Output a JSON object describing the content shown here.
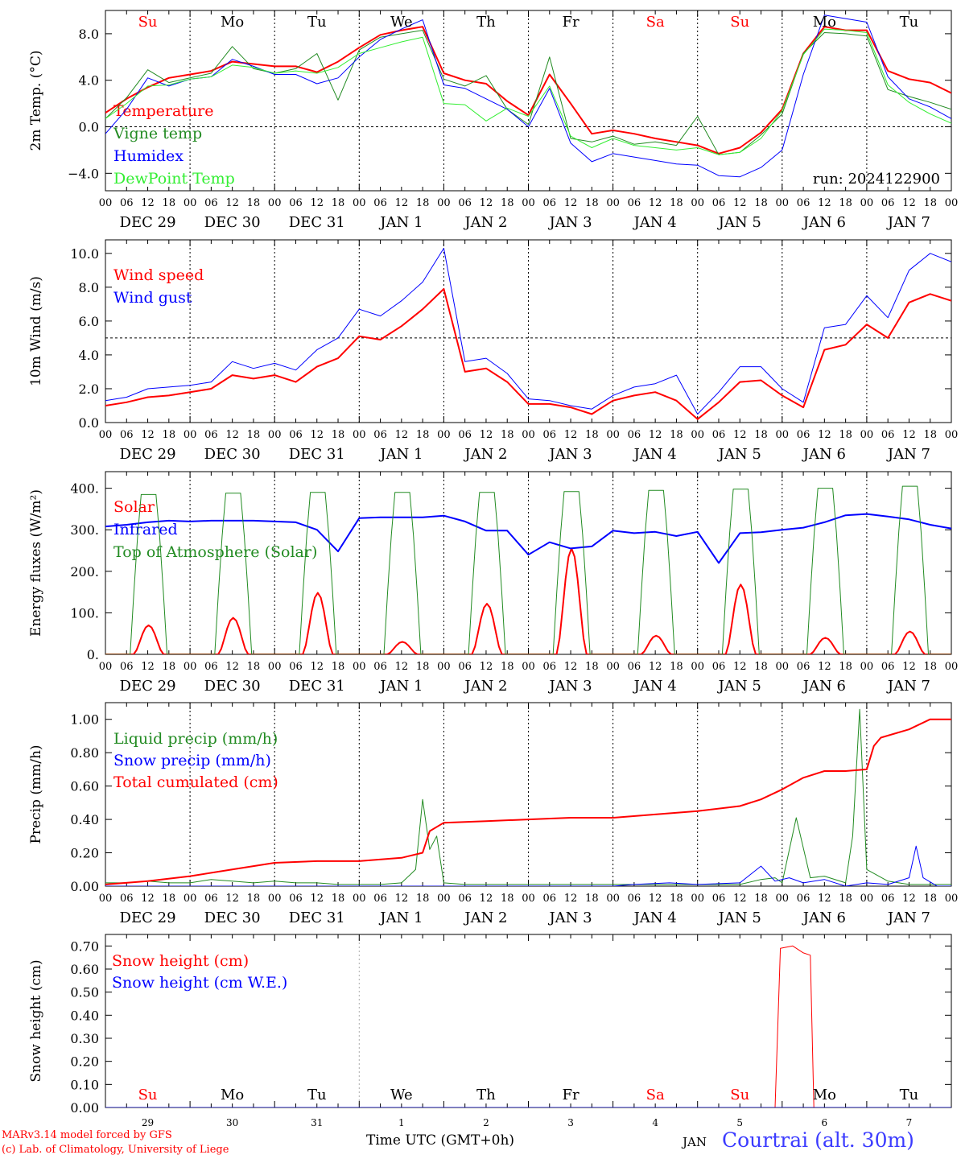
{
  "days": {
    "weekday_upper": [
      "Su",
      "Mo",
      "Tu",
      "We",
      "Th",
      "Fr",
      "Sa",
      "Su",
      "Mo",
      "Tu"
    ],
    "weekday_bottom": [
      "Su",
      "Mo",
      "Tu",
      "We",
      "Th",
      "Fr",
      "Sa",
      "Su",
      "Mo",
      "Tu"
    ],
    "weekend_color": "#ff0000",
    "weekday_color": "#000000",
    "weekend_flags": [
      true,
      false,
      false,
      false,
      false,
      false,
      true,
      true,
      false,
      false
    ],
    "date_labels": [
      "DEC 29",
      "DEC 30",
      "DEC 31",
      "JAN  1",
      "JAN  2",
      "JAN  3",
      "JAN  4",
      "JAN  5",
      "JAN  6",
      "JAN  7"
    ],
    "hour_ticks": [
      "00",
      "06",
      "12",
      "18"
    ],
    "hour_end": "00",
    "day_numbers": [
      "29",
      "30",
      "31",
      "1",
      "2",
      "3",
      "4",
      "5",
      "6",
      "7"
    ]
  },
  "run_label": "run: 2024122900",
  "footer": {
    "credit_line1": "MARv3.14 model forced by GFS",
    "credit_line2": "(c) Lab. of Climatology, University of Liege",
    "x_title": "Time UTC (GMT+0h)",
    "month": "JAN",
    "station": "Courtrai (alt. 30m)"
  },
  "chart_data": [
    {
      "type": "line",
      "ylabel": "2m Temp. (°C)",
      "ylim": [
        -5.5,
        10
      ],
      "ticks": [
        -4.0,
        0.0,
        4.0,
        8.0
      ],
      "tick_labels": [
        "−4.0",
        "0.0",
        "4.0",
        "8.0"
      ],
      "ref_line": 0,
      "x_unit": "hours since DEC 29 00 UTC",
      "x_range": [
        0,
        240
      ],
      "legend_placement": "left",
      "series": [
        {
          "name": "Temperature",
          "color": "#ff0000",
          "width": 2,
          "x": [
            0,
            6,
            12,
            18,
            24,
            30,
            36,
            42,
            48,
            54,
            60,
            66,
            72,
            78,
            84,
            90,
            96,
            102,
            108,
            114,
            120,
            126,
            132,
            138,
            144,
            150,
            156,
            162,
            168,
            174,
            180,
            186,
            192,
            198,
            204,
            210,
            216,
            222,
            228,
            234,
            240
          ],
          "y": [
            1.2,
            2.4,
            3.4,
            4.2,
            4.5,
            4.8,
            5.6,
            5.4,
            5.2,
            5.2,
            4.7,
            5.6,
            6.8,
            7.9,
            8.3,
            8.6,
            4.6,
            4.0,
            3.7,
            2.2,
            1.0,
            4.5,
            2.0,
            -0.6,
            -0.3,
            -0.6,
            -1.0,
            -1.3,
            -1.6,
            -2.3,
            -1.8,
            -0.5,
            1.5,
            6.3,
            8.6,
            8.3,
            8.3,
            4.8,
            4.1,
            3.8,
            2.9
          ]
        },
        {
          "name": "Vigne temp",
          "color": "#228b22",
          "width": 1,
          "x": [
            0,
            6,
            12,
            18,
            24,
            30,
            36,
            42,
            48,
            54,
            60,
            66,
            72,
            78,
            84,
            90,
            96,
            102,
            108,
            114,
            120,
            126,
            132,
            138,
            144,
            150,
            156,
            162,
            168,
            174,
            180,
            186,
            192,
            198,
            204,
            210,
            216,
            222,
            228,
            234,
            240
          ],
          "y": [
            0.7,
            2.5,
            4.9,
            3.8,
            4.2,
            4.6,
            6.9,
            5.0,
            4.6,
            5.0,
            6.3,
            2.3,
            6.6,
            7.7,
            8.0,
            8.3,
            4.1,
            3.5,
            4.4,
            1.5,
            0.2,
            6.0,
            -1.0,
            -1.3,
            -0.8,
            -1.5,
            -1.3,
            -1.6,
            0.9,
            -2.4,
            -2.2,
            -0.7,
            1.1,
            6.3,
            8.1,
            8.0,
            7.8,
            3.2,
            2.6,
            2.1,
            1.5
          ]
        },
        {
          "name": "Humidex",
          "color": "#0000ff",
          "width": 1,
          "x": [
            0,
            6,
            12,
            18,
            24,
            30,
            36,
            42,
            48,
            54,
            60,
            66,
            72,
            78,
            84,
            90,
            96,
            102,
            108,
            114,
            120,
            126,
            132,
            138,
            144,
            150,
            156,
            162,
            168,
            174,
            180,
            186,
            192,
            198,
            204,
            210,
            216,
            222,
            228,
            234,
            240
          ],
          "y": [
            -0.6,
            1.5,
            4.2,
            3.5,
            4.1,
            4.3,
            5.8,
            5.2,
            4.5,
            4.5,
            3.7,
            4.2,
            6.0,
            7.5,
            8.4,
            9.2,
            3.6,
            3.3,
            2.4,
            1.5,
            0.0,
            3.3,
            -1.4,
            -3.0,
            -2.3,
            -2.6,
            -2.9,
            -3.2,
            -3.3,
            -4.2,
            -4.3,
            -3.5,
            -2.0,
            4.5,
            9.6,
            9.3,
            9.0,
            4.3,
            2.4,
            1.7,
            0.7
          ]
        },
        {
          "name": "DewPoint Temp",
          "color": "#33ee33",
          "width": 1,
          "x": [
            0,
            6,
            12,
            18,
            24,
            30,
            36,
            42,
            48,
            54,
            60,
            66,
            72,
            78,
            84,
            90,
            96,
            102,
            108,
            114,
            120,
            126,
            132,
            138,
            144,
            150,
            156,
            162,
            168,
            174,
            180,
            186,
            192,
            198,
            204,
            210,
            216,
            222,
            228,
            234,
            240
          ],
          "y": [
            0.7,
            2.0,
            3.5,
            3.6,
            4.1,
            4.3,
            5.3,
            5.1,
            4.6,
            4.8,
            4.6,
            5.1,
            6.3,
            6.8,
            7.3,
            7.7,
            2.0,
            1.9,
            0.5,
            1.6,
            0.9,
            3.5,
            -0.8,
            -1.8,
            -1.0,
            -1.6,
            -1.8,
            -2.0,
            -1.8,
            -2.4,
            -2.2,
            -1.0,
            1.4,
            6.2,
            8.4,
            8.3,
            8.1,
            3.6,
            2.1,
            1.1,
            0.3
          ]
        }
      ]
    },
    {
      "type": "line",
      "ylabel": "10m Wind (m/s)",
      "ylim": [
        0,
        10.8
      ],
      "ticks": [
        0.0,
        2.0,
        4.0,
        6.0,
        8.0,
        10.0
      ],
      "tick_labels": [
        "0.0",
        "2.0",
        "4.0",
        "6.0",
        "8.0",
        "10.0"
      ],
      "ref_line": 5,
      "x_unit": "hours since DEC 29 00 UTC",
      "x_range": [
        0,
        240
      ],
      "legend_placement": "left",
      "series": [
        {
          "name": "Wind speed",
          "color": "#ff0000",
          "width": 2,
          "x": [
            0,
            6,
            12,
            18,
            24,
            30,
            36,
            42,
            48,
            54,
            60,
            66,
            72,
            78,
            84,
            90,
            96,
            102,
            108,
            114,
            120,
            126,
            132,
            138,
            144,
            150,
            156,
            162,
            168,
            174,
            180,
            186,
            192,
            198,
            204,
            210,
            216,
            222,
            228,
            234,
            240
          ],
          "y": [
            1.0,
            1.2,
            1.5,
            1.6,
            1.8,
            2.0,
            2.8,
            2.6,
            2.8,
            2.4,
            3.3,
            3.8,
            5.1,
            4.9,
            5.7,
            6.7,
            7.9,
            3.0,
            3.2,
            2.4,
            1.1,
            1.1,
            0.9,
            0.5,
            1.3,
            1.6,
            1.8,
            1.3,
            0.2,
            1.2,
            2.4,
            2.5,
            1.6,
            0.9,
            4.3,
            4.6,
            5.8,
            5.0,
            7.1,
            7.6,
            7.2
          ]
        },
        {
          "name": "Wind gust",
          "color": "#0000ff",
          "width": 1,
          "x": [
            0,
            6,
            12,
            18,
            24,
            30,
            36,
            42,
            48,
            54,
            60,
            66,
            72,
            78,
            84,
            90,
            96,
            102,
            108,
            114,
            120,
            126,
            132,
            138,
            144,
            150,
            156,
            162,
            168,
            174,
            180,
            186,
            192,
            198,
            204,
            210,
            216,
            222,
            228,
            234,
            240
          ],
          "y": [
            1.3,
            1.5,
            2.0,
            2.1,
            2.2,
            2.4,
            3.6,
            3.2,
            3.5,
            3.1,
            4.3,
            5.0,
            6.7,
            6.3,
            7.2,
            8.3,
            10.3,
            3.6,
            3.8,
            2.9,
            1.4,
            1.3,
            1.0,
            0.8,
            1.6,
            2.1,
            2.3,
            2.8,
            0.5,
            1.8,
            3.3,
            3.3,
            2.0,
            1.2,
            5.6,
            5.8,
            7.5,
            6.2,
            9.0,
            10.0,
            9.5
          ]
        }
      ]
    },
    {
      "type": "line",
      "ylabel": "Energy fluxes (W/m²)",
      "ylim": [
        0,
        440
      ],
      "ticks": [
        0,
        100,
        200,
        300,
        400
      ],
      "tick_labels": [
        "0.",
        "100.",
        "200.",
        "300.",
        "400."
      ],
      "x_unit": "hours since DEC 29 00 UTC",
      "x_range": [
        0,
        240
      ],
      "legend_placement": "left",
      "series": [
        {
          "name": "Solar",
          "color": "#ff0000",
          "width": 2,
          "daily_peak": [
            70,
            88,
            148,
            30,
            122,
            255,
            45,
            168,
            40,
            55
          ]
        },
        {
          "name": "Infrared",
          "color": "#0000ff",
          "width": 2,
          "x": [
            0,
            6,
            12,
            18,
            24,
            30,
            36,
            42,
            48,
            54,
            60,
            66,
            72,
            78,
            84,
            90,
            96,
            102,
            108,
            114,
            120,
            126,
            132,
            138,
            144,
            150,
            156,
            162,
            168,
            174,
            180,
            186,
            192,
            198,
            204,
            210,
            216,
            222,
            228,
            234,
            240
          ],
          "y": [
            308,
            312,
            318,
            322,
            320,
            322,
            322,
            322,
            320,
            318,
            300,
            248,
            328,
            330,
            330,
            330,
            334,
            320,
            298,
            298,
            240,
            270,
            255,
            260,
            298,
            292,
            295,
            285,
            295,
            220,
            292,
            294,
            300,
            305,
            318,
            335,
            338,
            332,
            325,
            312,
            303
          ]
        },
        {
          "name": "Top of Atmosphere (Solar)",
          "color": "#228b22",
          "width": 1,
          "daily_peak": [
            385,
            388,
            390,
            390,
            390,
            392,
            395,
            398,
            400,
            405
          ]
        }
      ]
    },
    {
      "type": "line",
      "ylabel": "Precip (mm/h)",
      "ylim": [
        0,
        1.1
      ],
      "ticks": [
        0.0,
        0.2,
        0.4,
        0.6,
        0.8,
        1.0
      ],
      "tick_labels": [
        "0.00",
        "0.20",
        "0.40",
        "0.60",
        "0.80",
        "1.00"
      ],
      "x_unit": "hours since DEC 29 00 UTC",
      "x_range": [
        0,
        240
      ],
      "legend_placement": "left",
      "series": [
        {
          "name": "Liquid precip (mm/h)",
          "color": "#228b22",
          "width": 1,
          "x": [
            0,
            6,
            12,
            18,
            24,
            30,
            36,
            42,
            48,
            54,
            60,
            66,
            72,
            78,
            84,
            88,
            90,
            92,
            94,
            96,
            102,
            108,
            114,
            120,
            126,
            132,
            138,
            144,
            150,
            156,
            162,
            168,
            174,
            180,
            186,
            190,
            192,
            196,
            200,
            204,
            210,
            212,
            214,
            216,
            222,
            228,
            234,
            240
          ],
          "y": [
            0.02,
            0.02,
            0.03,
            0.02,
            0.02,
            0.04,
            0.03,
            0.02,
            0.03,
            0.02,
            0.02,
            0.01,
            0.01,
            0.01,
            0.02,
            0.1,
            0.52,
            0.22,
            0.3,
            0.02,
            0.01,
            0.01,
            0.01,
            0.01,
            0.01,
            0.01,
            0.01,
            0.01,
            0.01,
            0.01,
            0.01,
            0.01,
            0.01,
            0.01,
            0.04,
            0.05,
            0.02,
            0.41,
            0.05,
            0.06,
            0.02,
            0.3,
            1.06,
            0.1,
            0.03,
            0.01,
            0.01,
            0.01
          ]
        },
        {
          "name": "Snow precip (mm/h)",
          "color": "#0000ff",
          "width": 1,
          "x": [
            0,
            24,
            48,
            72,
            96,
            120,
            144,
            150,
            160,
            168,
            180,
            186,
            190,
            194,
            198,
            204,
            210,
            216,
            222,
            228,
            230,
            232,
            236,
            240
          ],
          "y": [
            0.0,
            0.0,
            0.0,
            0.0,
            0.0,
            0.0,
            0.0,
            0.01,
            0.02,
            0.01,
            0.02,
            0.12,
            0.03,
            0.05,
            0.02,
            0.04,
            0.0,
            0.02,
            0.01,
            0.05,
            0.24,
            0.05,
            0.0,
            0.0
          ]
        },
        {
          "name": "Total cumulated (cm)",
          "color": "#ff0000",
          "width": 2,
          "x": [
            0,
            12,
            24,
            36,
            48,
            60,
            72,
            84,
            90,
            92,
            96,
            108,
            120,
            132,
            144,
            156,
            168,
            180,
            186,
            192,
            198,
            204,
            210,
            216,
            218,
            220,
            228,
            234,
            240
          ],
          "y": [
            0.01,
            0.03,
            0.06,
            0.1,
            0.14,
            0.15,
            0.15,
            0.17,
            0.2,
            0.33,
            0.38,
            0.39,
            0.4,
            0.41,
            0.41,
            0.43,
            0.45,
            0.48,
            0.52,
            0.58,
            0.65,
            0.69,
            0.69,
            0.7,
            0.84,
            0.89,
            0.94,
            1.0,
            1.0
          ]
        }
      ]
    },
    {
      "type": "line",
      "ylabel": "Snow height (cm)",
      "ylim": [
        0,
        0.75
      ],
      "ticks": [
        0.0,
        0.1,
        0.2,
        0.3,
        0.4,
        0.5,
        0.6,
        0.7
      ],
      "tick_labels": [
        "0.00",
        "0.10",
        "0.20",
        "0.30",
        "0.40",
        "0.50",
        "0.60",
        "0.70"
      ],
      "x_unit": "hours since DEC 29 00 UTC",
      "x_range": [
        0,
        240
      ],
      "legend_placement": "left",
      "series": [
        {
          "name": "Snow height (cm)",
          "color": "#ff0000",
          "width": 1,
          "x": [
            0,
            190,
            191.5,
            195,
            198,
            200,
            201,
            240
          ],
          "y": [
            0.0,
            0.0,
            0.69,
            0.7,
            0.67,
            0.66,
            0.0,
            0.0
          ]
        },
        {
          "name": "Snow height (cm W.E.)",
          "color": "#0000ff",
          "width": 1,
          "x": [
            0,
            240
          ],
          "y": [
            0.0,
            0.0
          ]
        }
      ]
    }
  ]
}
